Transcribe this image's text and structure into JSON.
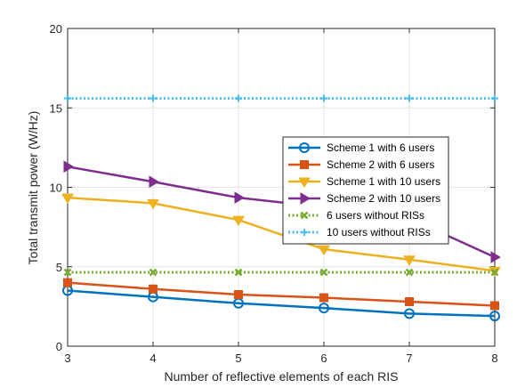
{
  "chart_data": {
    "type": "line",
    "title": "",
    "xlabel": "Number of reflective elements of each RIS",
    "ylabel": "Total transmit power (W/Hz)",
    "x": [
      3,
      4,
      5,
      6,
      7,
      8
    ],
    "xlim": [
      3,
      8
    ],
    "ylim": [
      0,
      20
    ],
    "xticks": [
      "3",
      "4",
      "5",
      "6",
      "7",
      "8"
    ],
    "yticks": [
      "0",
      "5",
      "10",
      "15",
      "20"
    ],
    "grid": true,
    "legend_position": "right",
    "series": [
      {
        "name": "Scheme 1 with 6 users",
        "values": [
          3.5,
          3.1,
          2.7,
          2.4,
          2.05,
          1.9
        ],
        "color": "#0072BD",
        "marker": "circle",
        "line": "solid"
      },
      {
        "name": "Scheme 2 with 6 users",
        "values": [
          4.0,
          3.6,
          3.25,
          3.05,
          2.8,
          2.55
        ],
        "color": "#D95319",
        "marker": "square",
        "line": "solid"
      },
      {
        "name": "Scheme 1 with 10 users",
        "values": [
          9.35,
          9.0,
          7.95,
          6.1,
          5.45,
          4.75
        ],
        "color": "#EDB120",
        "marker": "triangle-down",
        "line": "solid"
      },
      {
        "name": "Scheme 2 with 10 users",
        "values": [
          11.3,
          10.35,
          9.35,
          8.75,
          8.05,
          5.6
        ],
        "color": "#7E2F8E",
        "marker": "triangle-right",
        "line": "solid"
      },
      {
        "name": "6 users without RISs",
        "values": [
          4.65,
          4.65,
          4.65,
          4.65,
          4.65,
          4.65
        ],
        "color": "#77AC30",
        "marker": "x",
        "line": "dotted"
      },
      {
        "name": "10 users without RISs",
        "values": [
          15.6,
          15.6,
          15.6,
          15.6,
          15.6,
          15.6
        ],
        "color": "#4DBEEE",
        "marker": "plus",
        "line": "dotted"
      }
    ]
  }
}
